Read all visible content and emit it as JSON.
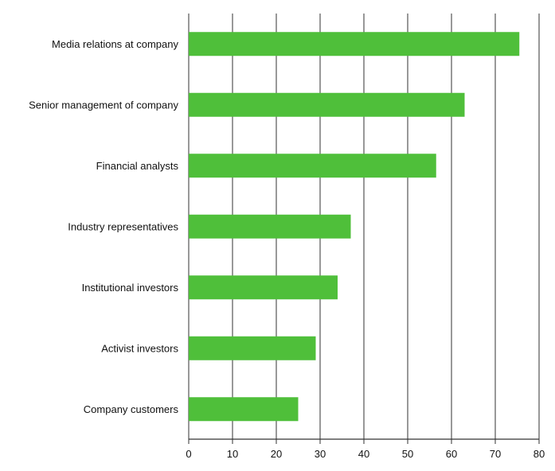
{
  "chart_data": {
    "type": "bar",
    "orientation": "horizontal",
    "title": "",
    "xlabel": "",
    "ylabel": "",
    "categories": [
      "Media relations at company",
      "Senior management of company",
      "Financial analysts",
      "Industry representatives",
      "Institutional investors",
      "Activist investors",
      "Company customers"
    ],
    "values": [
      75.5,
      63,
      56.5,
      37,
      34,
      29,
      25
    ],
    "xlim": [
      0,
      80
    ],
    "xticks": [
      0,
      10,
      20,
      30,
      40,
      50,
      60,
      70,
      80
    ],
    "xtick_labels": [
      "0",
      "10",
      "20",
      "30",
      "40",
      "50",
      "60",
      "70",
      "80"
    ],
    "grid": "vertical",
    "legend": "none",
    "bar_color": "#4fbf3a"
  }
}
